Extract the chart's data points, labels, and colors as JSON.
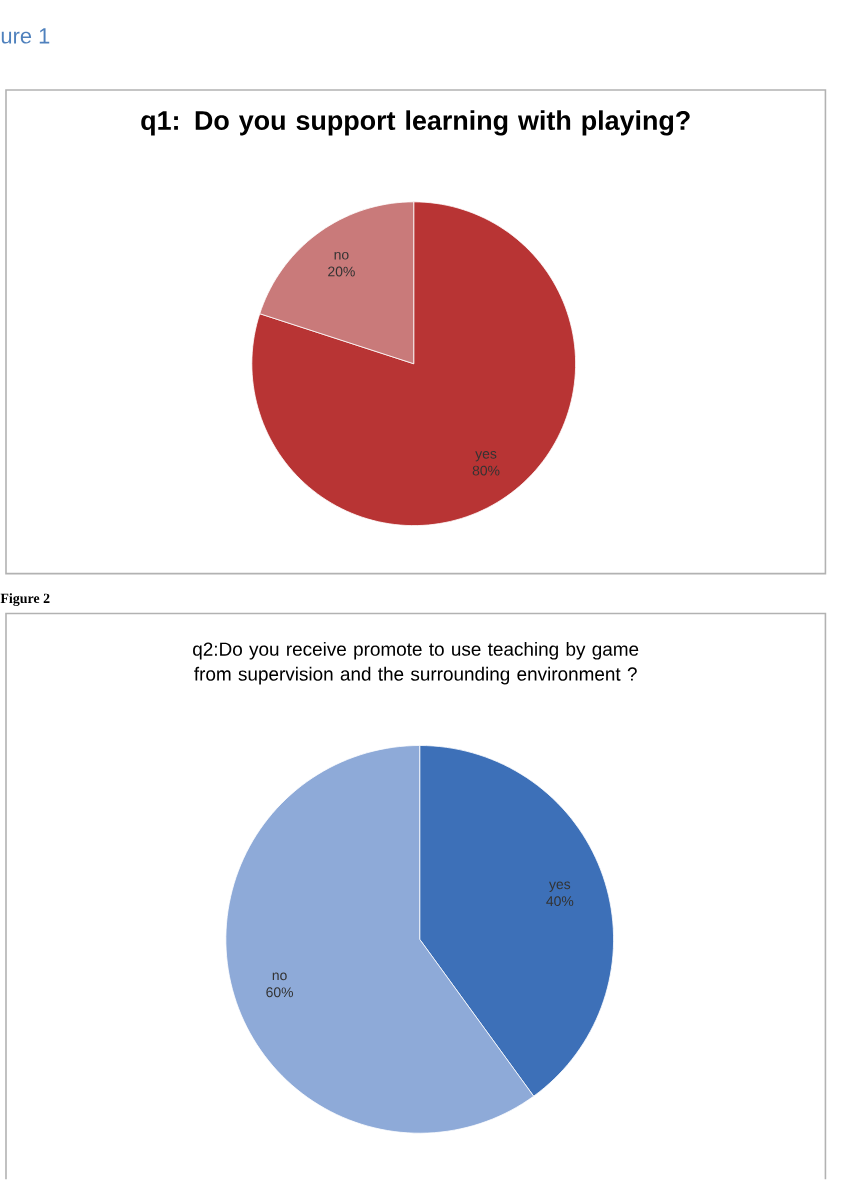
{
  "chart_data": [
    {
      "type": "pie",
      "title": "q1: Do you support learning with playing?",
      "annotations": [
        "ure 1"
      ],
      "categories": [
        "yes",
        "no"
      ],
      "values": [
        80,
        20
      ],
      "colors": [
        "#b83434",
        "#c97a7a"
      ],
      "value_labels": [
        "80%",
        "20%"
      ]
    },
    {
      "type": "pie",
      "title": "q2:Do you receive promote to use teaching by game from supervision and the surrounding environment ?",
      "annotations": [
        "Figure 2"
      ],
      "categories": [
        "yes",
        "no"
      ],
      "values": [
        40,
        60
      ],
      "colors": [
        "#3d70b8",
        "#8eaad8"
      ],
      "value_labels": [
        "40%",
        "60%"
      ]
    }
  ]
}
